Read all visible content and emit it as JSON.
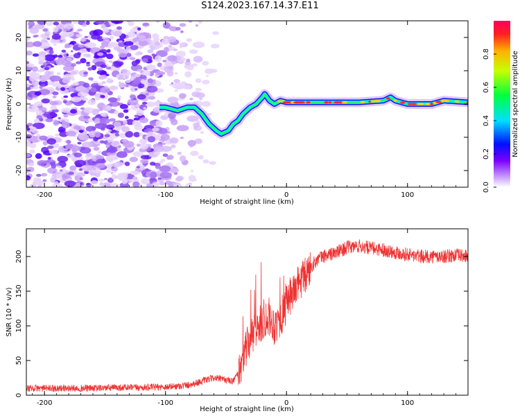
{
  "title": "S124.2023.167.14.37.E11",
  "chart_data": [
    {
      "type": "heatmap",
      "xlabel": "Height of straight line (km)",
      "ylabel": "Frequency (Hz)",
      "xlim": [
        -215,
        150
      ],
      "ylim": [
        -25,
        25
      ],
      "xticks": [
        -200,
        -100,
        0,
        100
      ],
      "yticks": [
        -20,
        -10,
        0,
        10,
        20
      ],
      "colorbar": {
        "label": "Normalized spectral amplitude",
        "range": [
          0,
          1
        ],
        "ticks": [
          0.0,
          0.2,
          0.4,
          0.6,
          0.8
        ],
        "tick_labels": [
          "0.0",
          "0.2",
          "0.4",
          "0.6",
          "0.8"
        ],
        "colormap": "gist_rainbow_r (white → violet → blue → cyan → green → yellow → red)"
      },
      "ridge": {
        "x": [
          -100,
          -90,
          -82,
          -76,
          -70,
          -64,
          -58,
          -54,
          -48,
          -44,
          -40,
          -36,
          -30,
          -25,
          -20,
          -18,
          -14,
          -10,
          -5,
          0,
          20,
          40,
          60,
          80,
          86,
          90,
          100,
          120,
          130,
          150
        ],
        "y": [
          -1,
          -2,
          -1,
          -1,
          -3,
          -6,
          -8,
          -9,
          -8,
          -6,
          -5,
          -3,
          -1,
          0,
          2,
          3,
          1,
          0,
          1,
          0.5,
          0.5,
          0.5,
          0.5,
          1,
          2,
          1,
          0,
          0,
          1,
          0.5
        ]
      }
    },
    {
      "type": "line",
      "xlabel": "Height of straight line (km)",
      "ylabel": "SNR (10 * v/v)",
      "xlim": [
        -215,
        150
      ],
      "ylim": [
        0,
        240
      ],
      "xticks": [
        -200,
        -100,
        0,
        100
      ],
      "yticks": [
        0,
        50,
        100,
        150,
        200
      ],
      "color": "#ee3333",
      "series": [
        {
          "x": [
            -215,
            -200,
            -180,
            -160,
            -140,
            -120,
            -100,
            -90,
            -80,
            -70,
            -60,
            -50,
            -45,
            -40,
            -35,
            -30,
            -25,
            -20,
            -15,
            -10,
            -5,
            0,
            5,
            10,
            15,
            20,
            25,
            30,
            40,
            50,
            60,
            70,
            80,
            90,
            100,
            110,
            120,
            130,
            140,
            150
          ],
          "values": [
            10,
            10,
            10,
            10,
            11,
            11,
            12,
            13,
            15,
            20,
            25,
            22,
            20,
            30,
            60,
            80,
            95,
            105,
            115,
            100,
            110,
            130,
            150,
            160,
            170,
            185,
            195,
            200,
            205,
            213,
            215,
            212,
            210,
            206,
            203,
            200,
            200,
            200,
            202,
            200
          ]
        }
      ]
    }
  ]
}
